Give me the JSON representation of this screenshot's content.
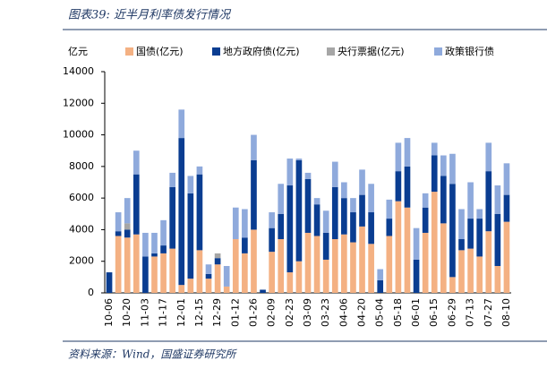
{
  "chart_data": {
    "type": "stacked_bar",
    "title": "图表39:  近半月利率债发行情况",
    "y_label": "亿元",
    "source": "资料来源：Wind，国盛证券研究所",
    "categories": [
      "10-06",
      null,
      "10-20",
      null,
      "11-03",
      null,
      "11-17",
      null,
      "12-01",
      null,
      "12-15",
      null,
      "12-29",
      null,
      "01-12",
      null,
      "01-26",
      null,
      "02-09",
      null,
      "02-23",
      null,
      "03-09",
      null,
      "03-23",
      null,
      "04-06",
      null,
      "04-20",
      null,
      "05-04",
      null,
      "05-18",
      null,
      "06-01",
      null,
      "06-15",
      null,
      "06-29",
      null,
      "07-13",
      null,
      "07-27",
      null,
      "08-10"
    ],
    "series": [
      {
        "name": "国债(亿元)",
        "color": "#f4b183",
        "values": [
          0,
          3600,
          3500,
          3700,
          0,
          2300,
          2500,
          2800,
          500,
          900,
          2700,
          900,
          1800,
          400,
          3400,
          2500,
          4000,
          0,
          2600,
          3400,
          1300,
          2000,
          3800,
          3600,
          2100,
          3400,
          3700,
          3200,
          4200,
          3100,
          0,
          3600,
          5800,
          5400,
          0,
          3800,
          6400,
          4400,
          1000,
          2700,
          2800,
          2300,
          3900,
          1700,
          4500
        ]
      },
      {
        "name": "地方政府债(亿元)",
        "color": "#0a3d91",
        "values": [
          1300,
          300,
          500,
          3800,
          2300,
          200,
          500,
          3900,
          9300,
          5400,
          4800,
          300,
          400,
          0,
          0,
          1000,
          4400,
          200,
          1500,
          1600,
          5500,
          6400,
          3400,
          2000,
          1700,
          3300,
          2300,
          1900,
          2000,
          2000,
          800,
          1100,
          1900,
          2600,
          2100,
          1600,
          2300,
          3000,
          5900,
          700,
          1900,
          2400,
          3800,
          3300,
          1700
        ]
      },
      {
        "name": "央行票据(亿元)",
        "color": "#a6a6a6",
        "values": [
          0,
          0,
          400,
          0,
          0,
          0,
          0,
          0,
          0,
          0,
          0,
          0,
          300,
          0,
          0,
          0,
          0,
          0,
          0,
          0,
          0,
          0,
          0,
          0,
          0,
          0,
          0,
          0,
          0,
          0,
          0,
          0,
          0,
          0,
          0,
          0,
          0,
          0,
          0,
          0,
          0,
          0,
          0,
          0,
          0
        ]
      },
      {
        "name": "政策银行债",
        "color": "#8faadc",
        "values": [
          0,
          1200,
          1600,
          1500,
          1500,
          1300,
          1600,
          900,
          1800,
          1100,
          500,
          600,
          0,
          1300,
          2000,
          1800,
          1600,
          0,
          1000,
          1900,
          1700,
          100,
          400,
          400,
          1400,
          1600,
          1000,
          900,
          1600,
          1800,
          700,
          1200,
          1800,
          1800,
          2000,
          900,
          800,
          1300,
          1900,
          1900,
          2300,
          600,
          1800,
          1800,
          2000
        ]
      }
    ],
    "ylim": [
      0,
      14000
    ],
    "yticks": [
      0,
      2000,
      4000,
      6000,
      8000,
      10000,
      12000,
      14000
    ]
  }
}
